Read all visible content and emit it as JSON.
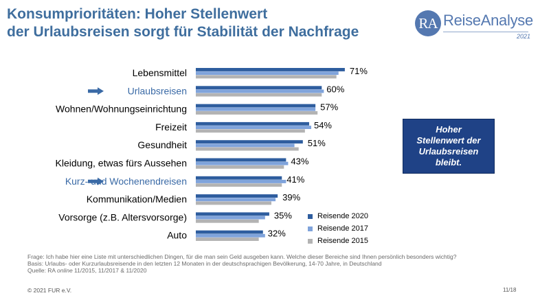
{
  "title": {
    "line1": "Konsumprioritäten: Hoher Stellenwert",
    "line2": "der Urlaubsreisen sorgt für Stabilität der Nachfrage"
  },
  "logo": {
    "mark": "RA",
    "name": "ReiseAnalyse",
    "year": "2021"
  },
  "note_box": {
    "line1": "Hoher",
    "line2": "Stellenwert der",
    "line3": "Urlaubsreisen",
    "line4": "bleibt."
  },
  "colors": {
    "series_2020": "#2e5d9e",
    "series_2017": "#7fa3db",
    "series_2015": "#b3b3b3",
    "highlight": "#3a6aa6",
    "arrow": "#3a6aa6"
  },
  "chart_data": {
    "type": "bar",
    "orientation": "horizontal",
    "categories": [
      "Lebensmittel",
      "Urlaubsreisen",
      "Wohnen/Wohnungseinrichtung",
      "Freizeit",
      "Gesundheit",
      "Kleidung, etwas fürs Aussehen",
      "Kurz- und Wochenendreisen",
      "Kommunikation/Medien",
      "Vorsorge (z.B. Altersvorsorge)",
      "Auto"
    ],
    "highlighted": [
      "Urlaubsreisen",
      "Kurz- und Wochenendreisen"
    ],
    "value_labels": [
      "71%",
      "60%",
      "57%",
      "54%",
      "51%",
      "43%",
      "41%",
      "39%",
      "35%",
      "32%"
    ],
    "series": [
      {
        "name": "Reisende 2020",
        "values": [
          71,
          60,
          57,
          54,
          51,
          43,
          41,
          39,
          35,
          32
        ]
      },
      {
        "name": "Reisende 2017",
        "values": [
          68,
          61,
          57,
          55,
          47,
          44,
          43,
          38,
          33,
          33
        ]
      },
      {
        "name": "Reisende 2015",
        "values": [
          67,
          60,
          58,
          52,
          49,
          42,
          41,
          36,
          30,
          30
        ]
      }
    ],
    "xlim": [
      0,
      100
    ],
    "legend_position": "bottom-right",
    "grid": false
  },
  "footnote": {
    "line1": "Frage: Ich habe hier eine Liste mit unterschiedlichen Dingen, für die man sein Geld ausgeben kann. Welche dieser Bereiche sind Ihnen persönlich besonders wichtig?",
    "line2": "Basis: Urlaubs- oder Kurzurlaubsreisende in den letzten 12 Monaten in der deutschsprachigen Bevölkerung, 14-70 Jahre, in Deutschland",
    "line3_prefix": "Quelle: RA ",
    "line3_italic": "online",
    "line3_suffix": " 11/2015, 11/2017 & 11/2020"
  },
  "copyright": "© 2021 FUR e.V.",
  "page_number": "11/18"
}
